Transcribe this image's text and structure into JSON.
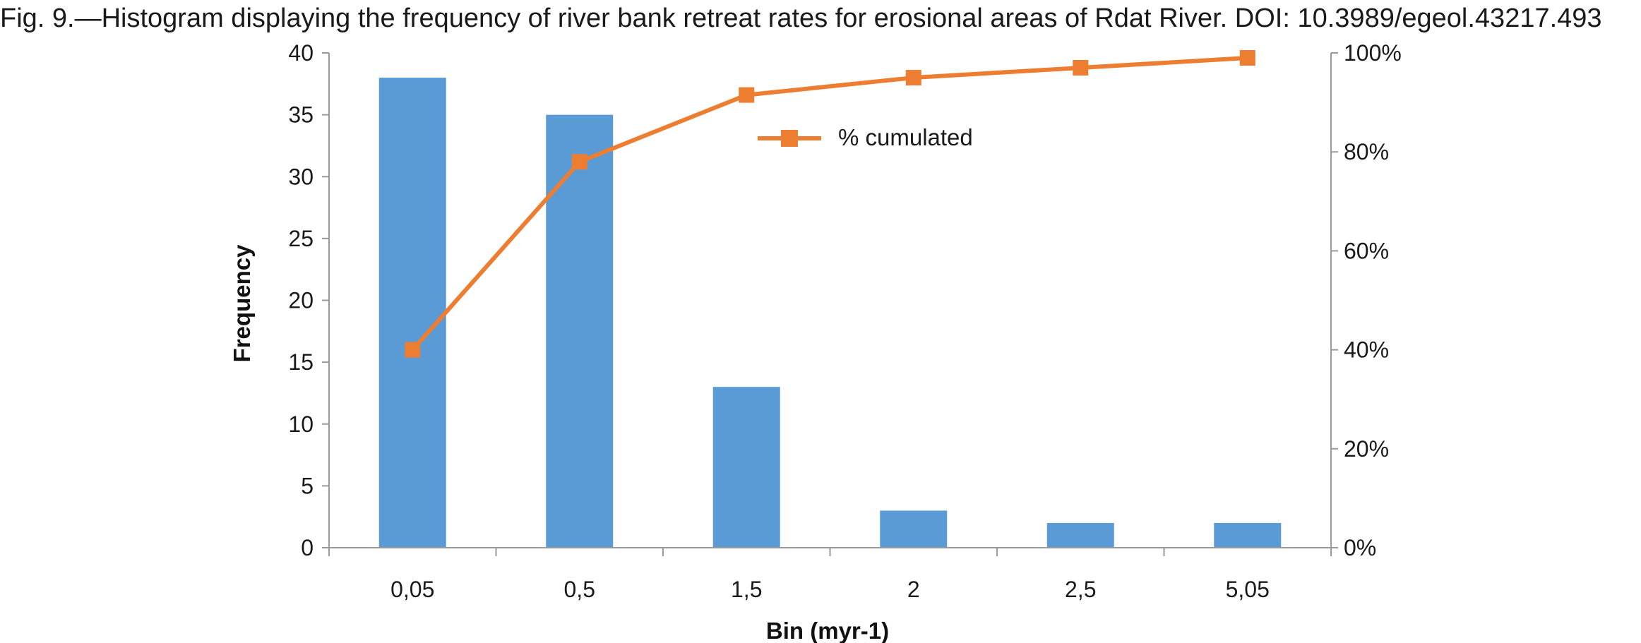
{
  "caption": "Fig. 9.—Histogram displaying the frequency of river bank retreat rates for erosional areas of Rdat River. DOI: 10.3989/egeol.43217.493",
  "chart_data": {
    "type": "bar",
    "categories": [
      "0,05",
      "0,5",
      "1,5",
      "2",
      "2,5",
      "5,05"
    ],
    "series": [
      {
        "name": "Frequency",
        "type": "bar",
        "axis": "left",
        "values": [
          38,
          35,
          13,
          3,
          2,
          2
        ],
        "color": "#5b9bd5"
      },
      {
        "name": "% cumulated",
        "type": "line",
        "axis": "right",
        "values": [
          40,
          78,
          91.5,
          95,
          97,
          99
        ],
        "color": "#ed7d31",
        "marker": "square"
      }
    ],
    "xlabel": "Bin (myr-1)",
    "ylabel": "Frequency",
    "ylim": [
      0,
      40
    ],
    "yticks": [
      "0",
      "5",
      "10",
      "15",
      "20",
      "25",
      "30",
      "35",
      "40"
    ],
    "y2lim": [
      0,
      100
    ],
    "y2ticks": [
      "0%",
      "20%",
      "40%",
      "60%",
      "80%",
      "100%"
    ],
    "legend": {
      "position": "top-center",
      "entries": [
        "% cumulated"
      ]
    },
    "grid": false
  }
}
